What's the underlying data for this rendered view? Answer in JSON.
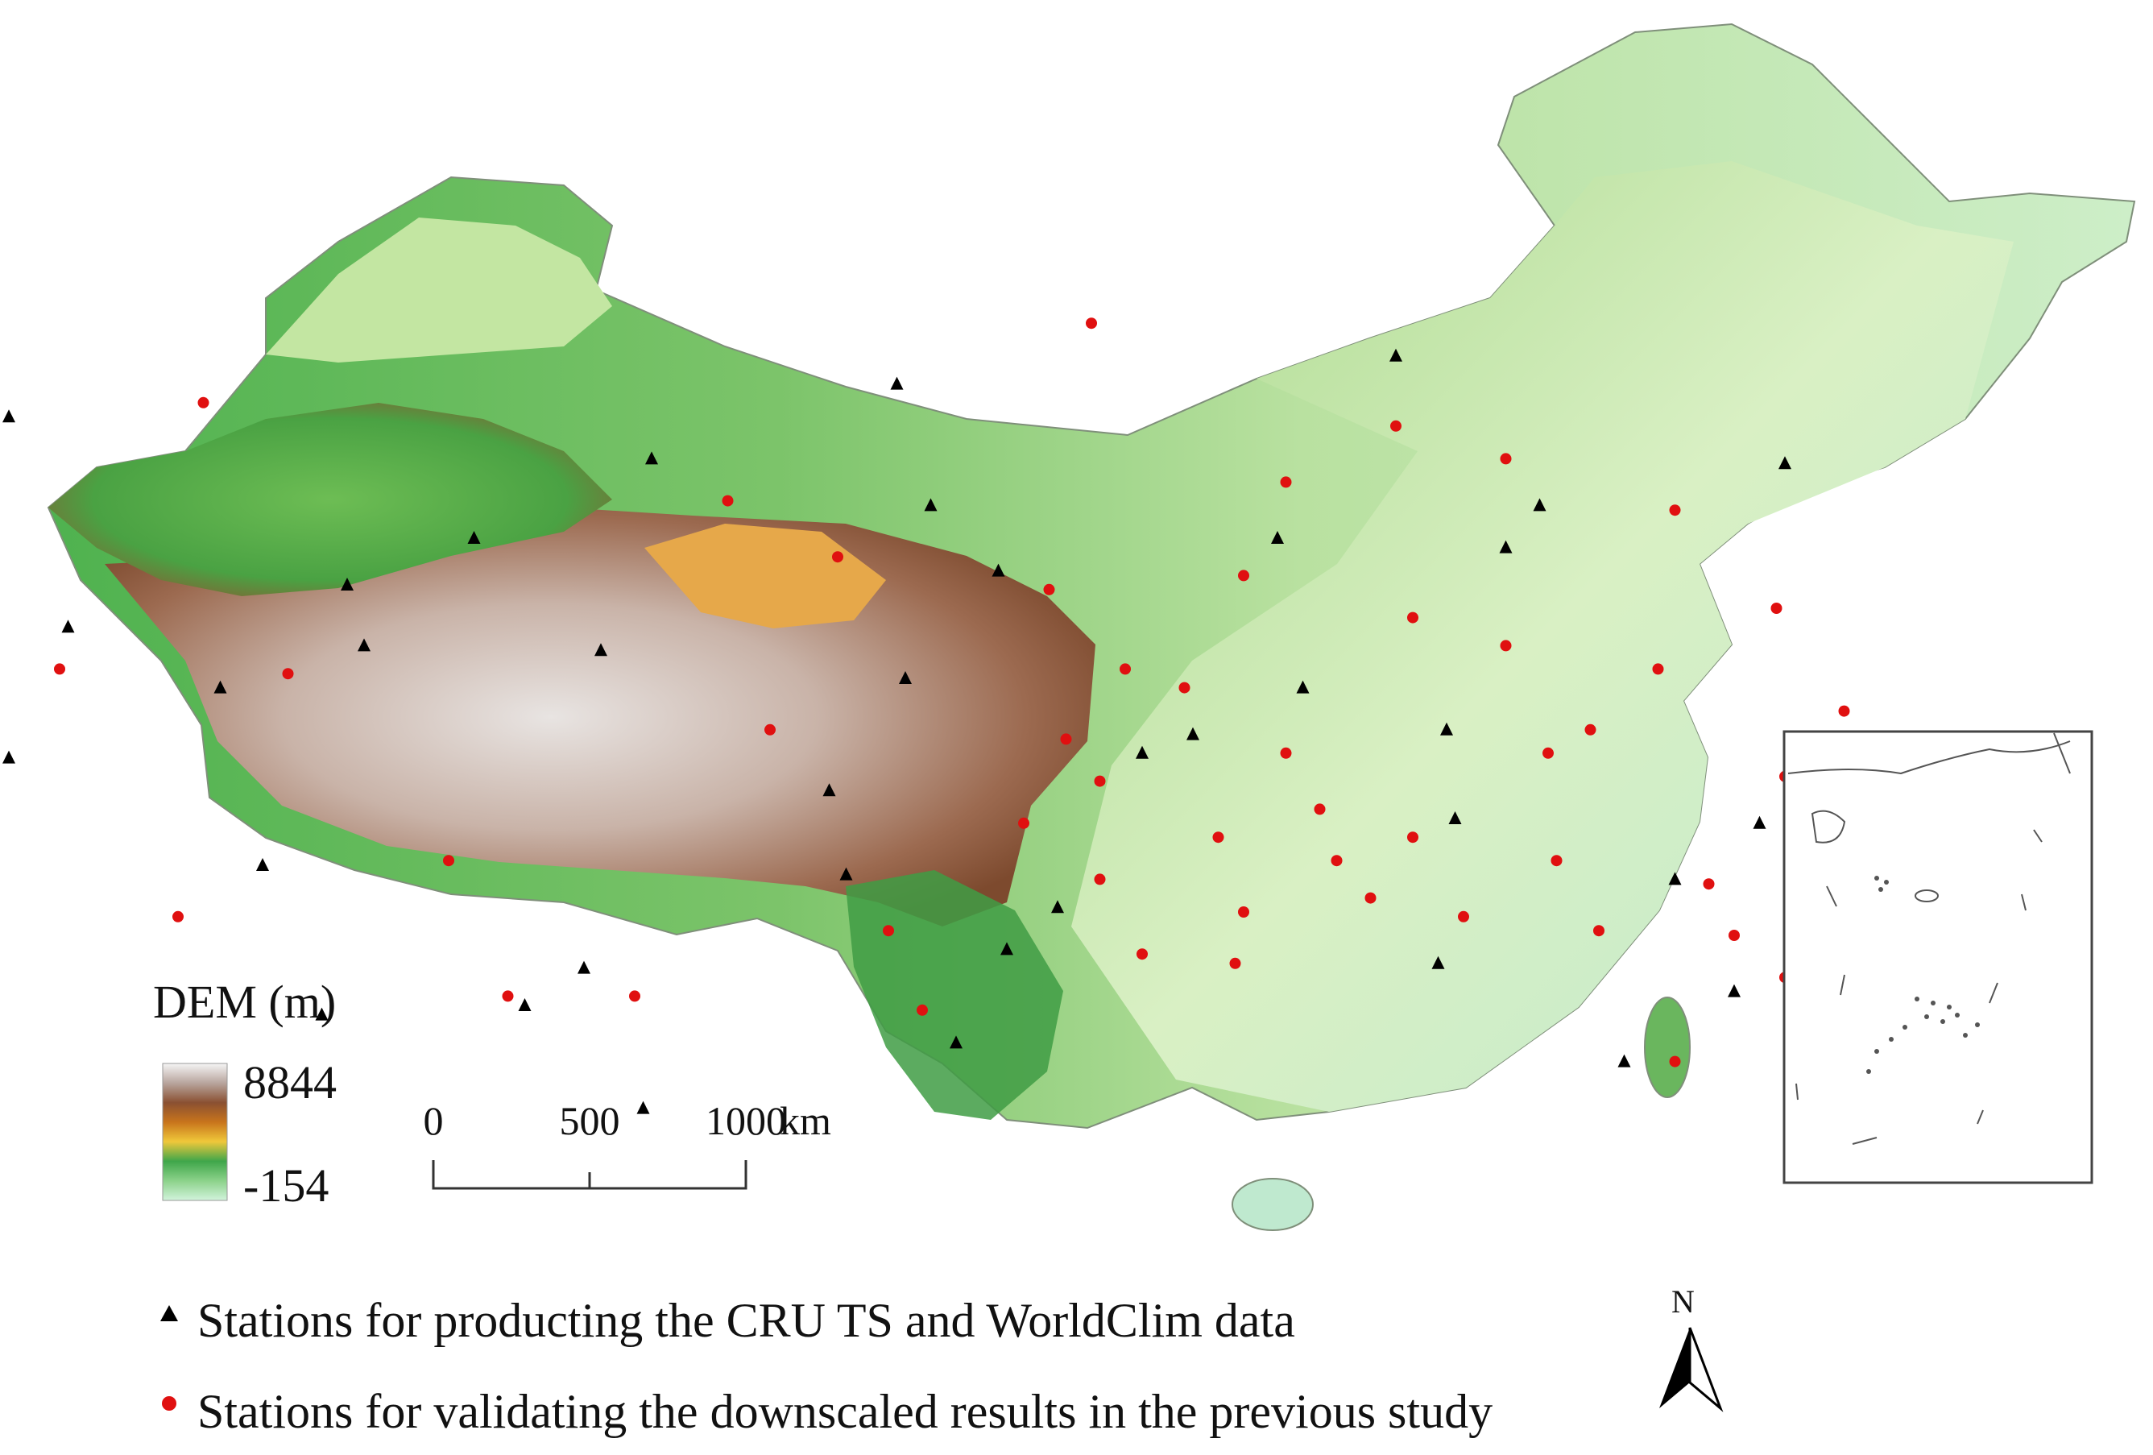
{
  "dem_legend": {
    "title": "DEM (m)",
    "max_label": "8844",
    "min_label": "-154",
    "colors": [
      "#f5f5f5",
      "#b8a59e",
      "#8a5032",
      "#c8741c",
      "#f0c83a",
      "#3fa64a",
      "#8cd28a",
      "#d2f3dc"
    ]
  },
  "scale_bar": {
    "ticks": [
      "0",
      "500",
      "1000"
    ],
    "unit": "km"
  },
  "north_arrow": {
    "label": "N"
  },
  "symbols": {
    "cru_color": "#000000",
    "validation_color": "#e01010"
  },
  "legend": {
    "cru_label": "Stations for producting the CRU TS and WorldClim data",
    "validation_label": "Stations for validating the downscaled results in the previous study"
  },
  "stations": {
    "cru_ts_worldclim": [
      [
        -1.11,
        -0.21
      ],
      [
        -0.48,
        -0.16
      ],
      [
        -0.12,
        -0.1
      ],
      [
        0.53,
        0.2
      ],
      [
        0.79,
        0.33
      ],
      [
        -1.18,
        0.07
      ],
      [
        -0.88,
        0.3
      ],
      [
        -0.5,
        0.52
      ],
      [
        0.0,
        0.48
      ],
      [
        0.16,
        0.06
      ],
      [
        -0.63,
        -0.4
      ],
      [
        -0.42,
        -0.57
      ],
      [
        -0.09,
        -0.47
      ],
      [
        0.32,
        -0.4
      ],
      [
        0.63,
        -0.47
      ],
      [
        -1.28,
        -0.01
      ],
      [
        -0.06,
        0.68
      ],
      [
        -0.78,
        -0.3
      ],
      [
        0.73,
        0.72
      ],
      [
        -0.21,
        0.14
      ],
      [
        0.59,
        -0.38
      ],
      [
        -0.01,
        -0.33
      ],
      [
        -1.34,
        0.31
      ],
      [
        0.35,
        -0.08
      ],
      [
        -0.93,
        -0.08
      ],
      [
        -0.81,
        0.62
      ],
      [
        0.51,
        0.51
      ],
      [
        0.06,
        0.39
      ],
      [
        -0.13,
        -0.73
      ],
      [
        0.52,
        0.01
      ],
      [
        0.92,
        -0.56
      ],
      [
        -1.18,
        -0.66
      ],
      [
        -0.76,
        -0.17
      ],
      [
        0.46,
        -0.79
      ],
      [
        0.89,
        0.21
      ],
      [
        -0.19,
        0.32
      ],
      [
        -0.57,
        0.6
      ],
      [
        0.22,
        0.02
      ],
      [
        -0.43,
        0.82
      ],
      [
        0.86,
        0.57
      ]
    ],
    "validation_previous_study": [
      [
        -0.59,
        0.58
      ],
      [
        0.28,
        -0.32
      ],
      [
        0.27,
        0.51
      ],
      [
        -0.95,
        -0.69
      ],
      [
        0.21,
        -0.08
      ],
      [
        0.37,
        0.18
      ],
      [
        -0.44,
        0.58
      ],
      [
        0.79,
        -0.46
      ],
      [
        0.05,
        -0.29
      ],
      [
        0.69,
        0.01
      ],
      [
        0.11,
        0.33
      ],
      [
        0.92,
        0.54
      ],
      [
        -1.12,
        -0.12
      ],
      [
        0.83,
        0.34
      ],
      [
        0.1,
        -0.86
      ],
      [
        -0.1,
        0.61
      ],
      [
        -0.28,
        0.01
      ],
      [
        0.46,
        -0.64
      ],
      [
        0.54,
        0.41
      ],
      [
        0.25,
        0.24
      ],
      [
        -0.33,
        -0.48
      ],
      [
        -1.26,
        0.23
      ],
      [
        0.91,
        -0.25
      ],
      [
        0.65,
        0.29
      ],
      [
        0.99,
        -0.03
      ],
      [
        0.33,
        -0.52
      ],
      [
        0.43,
        0.37
      ],
      [
        0.7,
        0.44
      ],
      [
        0.14,
        -0.12
      ],
      [
        0.59,
        -0.17
      ],
      [
        0.11,
        0.12
      ],
      [
        -0.85,
        -0.11
      ],
      [
        0.92,
        0.11
      ],
      [
        0.48,
        -0.23
      ],
      [
        0.77,
        -0.12
      ],
      [
        -0.2,
        -0.36
      ],
      [
        0.33,
        0.06
      ],
      [
        0.64,
        0.06
      ],
      [
        0.02,
        0.21
      ],
      [
        0.16,
        0.49
      ],
      [
        0.86,
        0.45
      ],
      [
        -0.66,
        0.29
      ],
      [
        0.39,
        0.29
      ],
      [
        0.79,
        0.72
      ],
      [
        -0.14,
        0.44
      ],
      [
        0.59,
        -0.57
      ],
      [
        0.28,
        0.4
      ],
      [
        0.48,
        0.24
      ],
      [
        -0.98,
        0.41
      ],
      [
        0.07,
        0.03
      ]
    ]
  }
}
